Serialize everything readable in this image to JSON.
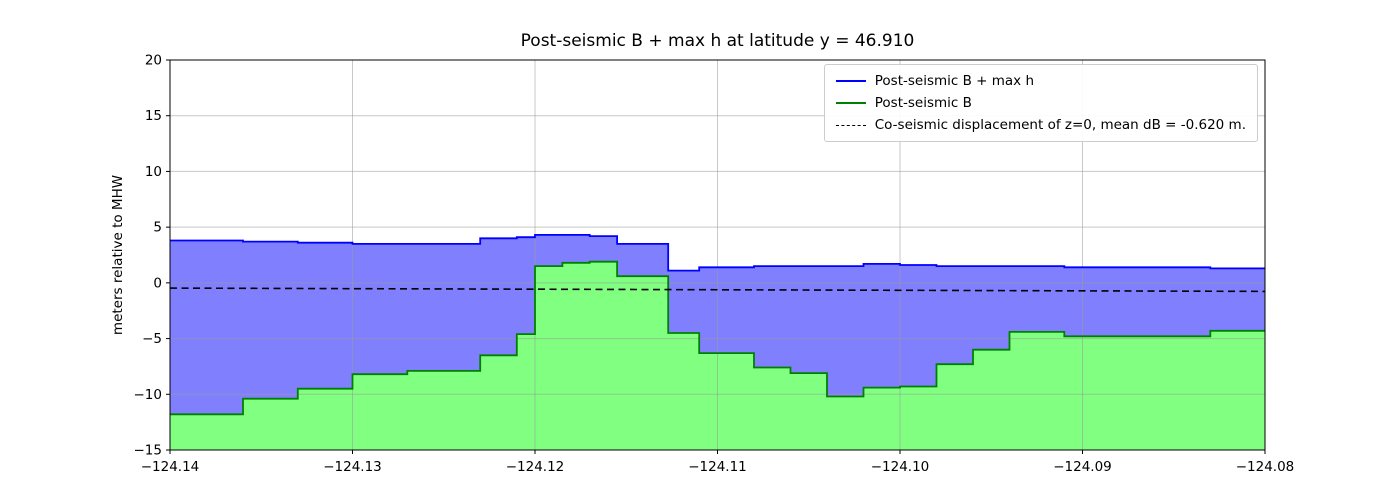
{
  "chart_data": {
    "type": "area",
    "title": "Post-seismic B + max h at latitude y = 46.910",
    "ylabel": "meters relative to MHW",
    "xlabel": "",
    "xlim": [
      -124.14,
      -124.08
    ],
    "ylim": [
      -15,
      20
    ],
    "grid": true,
    "legend_position": "upper right",
    "xticks": [
      {
        "value": -124.14,
        "label": "−124.14"
      },
      {
        "value": -124.13,
        "label": "−124.13"
      },
      {
        "value": -124.12,
        "label": "−124.12"
      },
      {
        "value": -124.11,
        "label": "−124.11"
      },
      {
        "value": -124.1,
        "label": "−124.10"
      },
      {
        "value": -124.09,
        "label": "−124.09"
      },
      {
        "value": -124.08,
        "label": "−124.08"
      }
    ],
    "yticks": [
      {
        "value": 20,
        "label": "20"
      },
      {
        "value": 15,
        "label": "15"
      },
      {
        "value": 10,
        "label": "10"
      },
      {
        "value": 5,
        "label": "5"
      },
      {
        "value": 0,
        "label": "0"
      },
      {
        "value": -5,
        "label": "−5"
      },
      {
        "value": -10,
        "label": "−10"
      },
      {
        "value": -15,
        "label": "−15"
      }
    ],
    "x_edges": [
      -124.14,
      -124.136,
      -124.133,
      -124.13,
      -124.127,
      -124.123,
      -124.121,
      -124.12,
      -124.1185,
      -124.117,
      -124.1155,
      -124.1127,
      -124.111,
      -124.108,
      -124.106,
      -124.104,
      -124.102,
      -124.1,
      -124.098,
      -124.096,
      -124.094,
      -124.091,
      -124.085,
      -124.083,
      -124.08
    ],
    "series": [
      {
        "name": "Post-seismic B + max h",
        "line_color": "#0000ff",
        "fill_color": "#8080ff",
        "values": [
          3.8,
          3.7,
          3.6,
          3.5,
          3.5,
          4.0,
          4.1,
          4.3,
          4.3,
          4.2,
          3.5,
          1.1,
          1.4,
          1.5,
          1.5,
          1.5,
          1.7,
          1.6,
          1.5,
          1.5,
          1.5,
          1.4,
          1.4,
          1.3
        ]
      },
      {
        "name": "Post-seismic B",
        "line_color": "#008000",
        "fill_color": "#80ff80",
        "values": [
          -11.8,
          -10.4,
          -9.5,
          -8.2,
          -7.9,
          -6.5,
          -4.6,
          1.5,
          1.8,
          1.9,
          0.6,
          -4.5,
          -6.3,
          -7.6,
          -8.1,
          -10.2,
          -9.4,
          -9.3,
          -7.3,
          -6.0,
          -4.4,
          -4.8,
          -4.8,
          -4.3
        ]
      }
    ],
    "dashed_line": {
      "name": "Co-seismic displacement of z=0, mean dB = -0.620 m.",
      "color": "#000000",
      "mean_dB_m": -0.62,
      "x": [
        -124.14,
        -124.08
      ],
      "y": [
        -0.47,
        -0.77
      ]
    }
  }
}
